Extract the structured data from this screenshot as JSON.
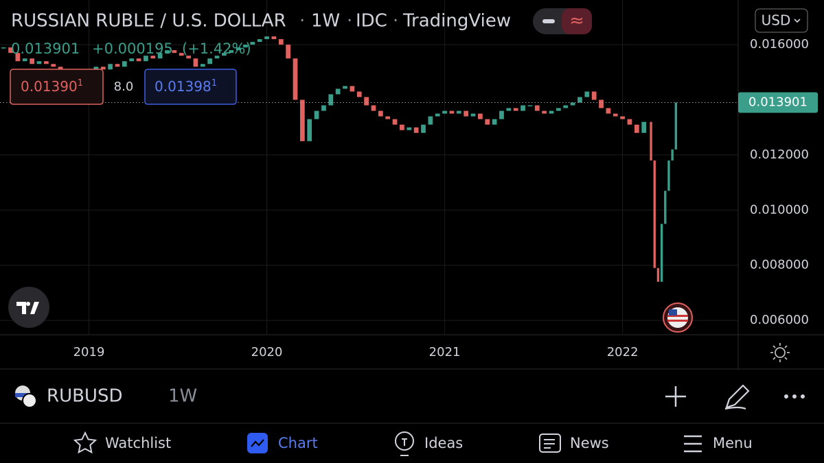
{
  "header": {
    "title": "RUSSIAN RUBLE / U.S. DOLLAR",
    "interval": "1W",
    "source": "IDC",
    "brand": "TradingView",
    "currency": "USD"
  },
  "legend": {
    "close": "0.013901",
    "change": "+0.000195",
    "change_pct": "(+1.42%)",
    "bid": "0.01390",
    "bid_sup": "1",
    "spread": "8.0",
    "ask": "0.01398",
    "ask_sup": "1"
  },
  "chart_data": {
    "type": "candlestick",
    "up_color": "#3a9e8a",
    "down_color": "#e0625f",
    "xlim": [
      2018.5,
      2022.65
    ],
    "xticks": [
      2019,
      2020,
      2021,
      2022
    ],
    "ylim": [
      0.00548,
      0.01762
    ],
    "yticks": [
      {
        "value": 0.006,
        "label": "0.006000"
      },
      {
        "value": 0.008,
        "label": "0.008000"
      },
      {
        "value": 0.01,
        "label": "0.010000"
      },
      {
        "value": 0.012,
        "label": "0.012000"
      },
      {
        "value": 0.016,
        "label": "0.016000"
      }
    ],
    "grid": true,
    "last_price": 0.013901,
    "x": [
      2018.52,
      2018.56,
      2018.6,
      2018.64,
      2018.68,
      2018.72,
      2018.76,
      2018.8,
      2018.84,
      2018.88,
      2018.92,
      2018.96,
      2019.0,
      2019.04,
      2019.08,
      2019.12,
      2019.16,
      2019.2,
      2019.24,
      2019.28,
      2019.32,
      2019.36,
      2019.4,
      2019.44,
      2019.48,
      2019.52,
      2019.56,
      2019.6,
      2019.64,
      2019.68,
      2019.72,
      2019.76,
      2019.8,
      2019.84,
      2019.88,
      2019.92,
      2019.96,
      2020.0,
      2020.04,
      2020.08,
      2020.12,
      2020.16,
      2020.2,
      2020.24,
      2020.28,
      2020.32,
      2020.36,
      2020.4,
      2020.44,
      2020.48,
      2020.52,
      2020.56,
      2020.6,
      2020.64,
      2020.68,
      2020.72,
      2020.76,
      2020.8,
      2020.84,
      2020.88,
      2020.92,
      2020.96,
      2021.0,
      2021.04,
      2021.08,
      2021.12,
      2021.16,
      2021.2,
      2021.24,
      2021.28,
      2021.32,
      2021.36,
      2021.4,
      2021.44,
      2021.48,
      2021.52,
      2021.56,
      2021.6,
      2021.64,
      2021.68,
      2021.72,
      2021.76,
      2021.8,
      2021.84,
      2021.88,
      2021.92,
      2021.96,
      2022.0,
      2022.04,
      2022.08,
      2022.12,
      2022.16,
      2022.18,
      2022.2,
      2022.22,
      2022.24,
      2022.26,
      2022.28,
      2022.3
    ],
    "close": [
      0.0159,
      0.0157,
      0.0154,
      0.0155,
      0.0153,
      0.0154,
      0.0153,
      0.0152,
      0.0151,
      0.0151,
      0.015,
      0.0149,
      0.015,
      0.0152,
      0.0151,
      0.0153,
      0.0152,
      0.0154,
      0.0155,
      0.0154,
      0.0156,
      0.0155,
      0.0157,
      0.0158,
      0.0157,
      0.0156,
      0.0155,
      0.0152,
      0.0153,
      0.0155,
      0.0156,
      0.0157,
      0.0158,
      0.0159,
      0.016,
      0.0161,
      0.0162,
      0.0163,
      0.0162,
      0.016,
      0.0155,
      0.014,
      0.0125,
      0.0133,
      0.0136,
      0.0138,
      0.0142,
      0.0144,
      0.0145,
      0.0143,
      0.0141,
      0.0138,
      0.0136,
      0.0134,
      0.0133,
      0.0131,
      0.0129,
      0.013,
      0.0128,
      0.0131,
      0.0134,
      0.0135,
      0.0136,
      0.0135,
      0.0136,
      0.0134,
      0.0135,
      0.0133,
      0.0131,
      0.0133,
      0.0136,
      0.0137,
      0.0136,
      0.0138,
      0.0138,
      0.0136,
      0.0135,
      0.0136,
      0.0137,
      0.0138,
      0.0139,
      0.0141,
      0.0143,
      0.014,
      0.0137,
      0.0135,
      0.0134,
      0.0133,
      0.0131,
      0.0128,
      0.0132,
      0.0118,
      0.0079,
      0.0074,
      0.0095,
      0.0107,
      0.0118,
      0.0122,
      0.0139
    ]
  },
  "symbol_bar": {
    "symbol": "RUBUSD",
    "interval": "1W"
  },
  "nav": [
    "Watchlist",
    "Chart",
    "Ideas",
    "News",
    "Menu"
  ]
}
